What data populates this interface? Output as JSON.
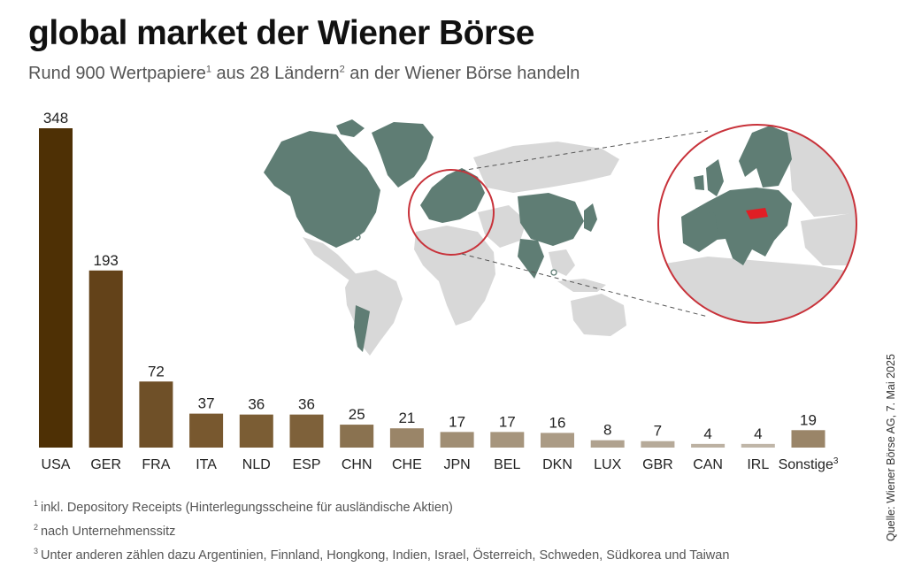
{
  "header": {
    "title": "global market der Wiener Börse",
    "subtitle_part1": "Rund 900 Wertpapiere",
    "subtitle_sup1": "1",
    "subtitle_part2": " aus 28 Ländern",
    "subtitle_sup2": "2",
    "subtitle_part3": " an der Wiener Börse handeln"
  },
  "chart_data": {
    "type": "bar",
    "categories": [
      "USA",
      "GER",
      "FRA",
      "ITA",
      "NLD",
      "ESP",
      "CHN",
      "CHE",
      "JPN",
      "BEL",
      "DKN",
      "LUX",
      "GBR",
      "CAN",
      "IRL",
      "Sonstige"
    ],
    "category_sups": [
      "",
      "",
      "",
      "",
      "",
      "",
      "",
      "",
      "",
      "",
      "",
      "",
      "",
      "",
      "",
      "3"
    ],
    "values": [
      348,
      193,
      72,
      37,
      36,
      36,
      25,
      21,
      17,
      17,
      16,
      8,
      7,
      4,
      4,
      19
    ],
    "colors": [
      "#4e3005",
      "#634219",
      "#6f5028",
      "#78582f",
      "#7b5d34",
      "#7e613a",
      "#8a7250",
      "#9a8568",
      "#a08e74",
      "#a6957d",
      "#ab9b85",
      "#b0a28f",
      "#b6aa99",
      "#bcb1a2",
      "#c0b6a8",
      "#9a8568"
    ],
    "ylim": [
      0,
      348
    ]
  },
  "map": {
    "highlight_color": "#5f7d74",
    "land_color": "#d8d8d8",
    "accent_color": "#c8323a",
    "austria_color": "#e01e25"
  },
  "footnotes": [
    {
      "sup": "1",
      "text": "inkl. Depository Receipts (Hinterlegungsscheine für ausländische Aktien)"
    },
    {
      "sup": "2",
      "text": "nach Unternehmenssitz"
    },
    {
      "sup": "3",
      "text": "Unter anderen zählen dazu Argentinien, Finnland, Hongkong, Indien, Israel, Österreich, Schweden, Südkorea und Taiwan"
    }
  ],
  "source": "Quelle: Wiener Börse AG, 7. Mai 2025"
}
